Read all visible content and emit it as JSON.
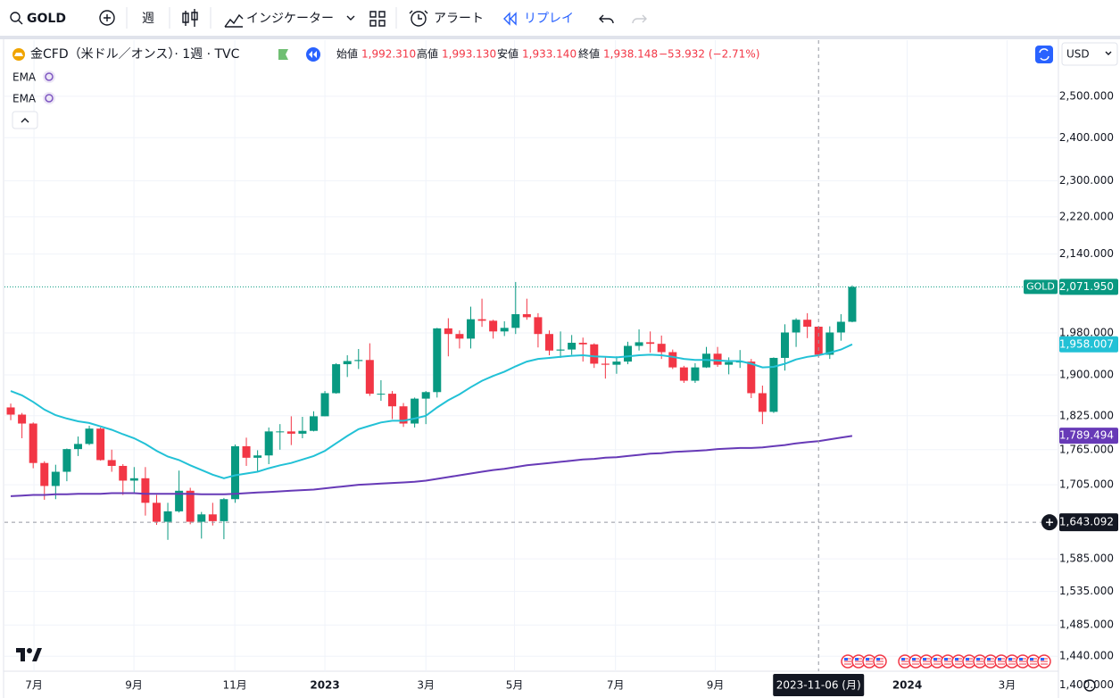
{
  "toolbar": {
    "symbol": "GOLD",
    "interval": "週",
    "indicators": "インジケーター",
    "alerts": "アラート",
    "replay": "リプレイ"
  },
  "chart_data": {
    "type": "candlestick",
    "title": "金CFD（米ドル／オンス）· 1週 · TVC",
    "ohlc": [
      {
        "name": "始値",
        "text": "1,992.310"
      },
      {
        "name": "高値",
        "text": "1,993.130"
      },
      {
        "name": "安値",
        "text": "1,933.140"
      },
      {
        "name": "終値",
        "text": "1,938.148"
      }
    ],
    "change": "−53.932 (−2.71%)",
    "currency": "USD",
    "up_color": "#089981",
    "down_color": "#f23645",
    "open": [
      1840,
      1827,
      1811,
      1742,
      1703,
      1727,
      1766,
      1775,
      1802,
      1747,
      1737,
      1712,
      1716,
      1675,
      1644,
      1661,
      1695,
      1644,
      1656,
      1645,
      1681,
      1771,
      1751,
      1755,
      1797,
      1797,
      1793,
      1798,
      1824,
      1866,
      1920,
      1926,
      1928,
      1865,
      1865,
      1842,
      1811,
      1856,
      1868,
      1989,
      1978,
      1969,
      2007,
      2004,
      1983,
      1990,
      2017,
      2011,
      1978,
      1946,
      1948,
      1961,
      1958,
      1921,
      1919,
      1925,
      1955,
      1962,
      1959,
      1943,
      1914,
      1889,
      1914,
      1940,
      1919,
      1924,
      1925,
      1866,
      1832,
      1932,
      1981,
      2006,
      1992.31,
      1938,
      1981,
      2002
    ],
    "high": [
      1847,
      1830,
      1813,
      1745,
      1739,
      1767,
      1788,
      1807,
      1804,
      1765,
      1740,
      1735,
      1735,
      1688,
      1675,
      1729,
      1700,
      1660,
      1675,
      1683,
      1774,
      1786,
      1764,
      1804,
      1810,
      1824,
      1823,
      1833,
      1870,
      1922,
      1937,
      1949,
      1960,
      1890,
      1870,
      1848,
      1858,
      1870,
      1990,
      2009,
      1985,
      2032,
      2048,
      2006,
      2003,
      2082,
      2048,
      2019,
      1985,
      1983,
      1976,
      1971,
      1960,
      1935,
      1935,
      1963,
      1987,
      1983,
      1975,
      1948,
      1917,
      1922,
      1953,
      1953,
      1933,
      1947,
      1930,
      1880,
      1933,
      1997,
      2009,
      2019,
      1993.13,
      1993,
      2017,
      2075
    ],
    "low": [
      1817,
      1785,
      1733,
      1680,
      1681,
      1711,
      1754,
      1773,
      1746,
      1727,
      1688,
      1691,
      1654,
      1639,
      1615,
      1659,
      1640,
      1617,
      1638,
      1616,
      1675,
      1737,
      1728,
      1740,
      1765,
      1773,
      1785,
      1797,
      1824,
      1865,
      1896,
      1911,
      1861,
      1852,
      1819,
      1805,
      1804,
      1810,
      1858,
      1935,
      1950,
      1950,
      1992,
      1969,
      1974,
      1978,
      2006,
      1952,
      1937,
      1932,
      1938,
      1925,
      1913,
      1893,
      1902,
      1920,
      1946,
      1942,
      1930,
      1911,
      1885,
      1885,
      1913,
      1915,
      1901,
      1913,
      1857,
      1810,
      1830,
      1908,
      1953,
      1970,
      1933.14,
      1930,
      1965,
      2001
    ],
    "close": [
      1827,
      1811,
      1742,
      1703,
      1727,
      1766,
      1775,
      1802,
      1747,
      1737,
      1712,
      1716,
      1675,
      1644,
      1661,
      1695,
      1644,
      1656,
      1645,
      1681,
      1771,
      1751,
      1755,
      1797,
      1797,
      1793,
      1798,
      1824,
      1866,
      1920,
      1926,
      1928,
      1865,
      1865,
      1842,
      1811,
      1856,
      1868,
      1989,
      1978,
      1969,
      2007,
      2004,
      1983,
      1990,
      2017,
      2011,
      1978,
      1946,
      1948,
      1961,
      1958,
      1921,
      1919,
      1925,
      1955,
      1962,
      1959,
      1943,
      1914,
      1889,
      1914,
      1940,
      1919,
      1924,
      1925,
      1866,
      1832,
      1932,
      1981,
      2006,
      1992.31,
      1938.148,
      1981,
      2002,
      2071.95
    ],
    "series": [
      {
        "name": "EMA",
        "color": "#22c1d6",
        "last": {
          "value": 1958.007,
          "label": "1,958.007"
        },
        "values": [
          1870,
          1862,
          1850,
          1836,
          1826,
          1820,
          1815,
          1812,
          1806,
          1800,
          1792,
          1785,
          1775,
          1763,
          1753,
          1747,
          1738,
          1730,
          1722,
          1716,
          1721,
          1724,
          1727,
          1733,
          1738,
          1742,
          1748,
          1754,
          1763,
          1776,
          1789,
          1801,
          1807,
          1813,
          1816,
          1816,
          1820,
          1825,
          1840,
          1853,
          1864,
          1877,
          1889,
          1898,
          1906,
          1916,
          1925,
          1930,
          1932,
          1934,
          1936,
          1937,
          1935,
          1934,
          1933,
          1935,
          1937,
          1938,
          1937,
          1934,
          1930,
          1928,
          1928,
          1927,
          1926,
          1926,
          1921,
          1914,
          1915,
          1921,
          1929,
          1934,
          1937,
          1942,
          1948,
          1958
        ]
      },
      {
        "name": "EMA",
        "color": "#673ab7",
        "last": {
          "value": 1789.494,
          "label": "1,789.494"
        },
        "values": [
          1686,
          1687,
          1688,
          1688,
          1689,
          1689,
          1690,
          1690,
          1690,
          1691,
          1691,
          1691,
          1690,
          1690,
          1690,
          1690,
          1690,
          1689,
          1689,
          1689,
          1690,
          1691,
          1692,
          1693,
          1694,
          1695,
          1696,
          1697,
          1699,
          1701,
          1703,
          1705,
          1706,
          1707,
          1708,
          1709,
          1710,
          1712,
          1715,
          1718,
          1721,
          1724,
          1727,
          1730,
          1732,
          1735,
          1738,
          1740,
          1742,
          1744,
          1746,
          1748,
          1749,
          1751,
          1752,
          1754,
          1756,
          1758,
          1759,
          1761,
          1762,
          1763,
          1764,
          1766,
          1767,
          1768,
          1768,
          1769,
          1771,
          1773,
          1776,
          1778,
          1780,
          1783,
          1786,
          1789
        ]
      }
    ],
    "last_price": {
      "name": "GOLD",
      "value": 2071.95,
      "label": "2,071.950",
      "color": "#089981"
    },
    "crosshair": {
      "x": 72,
      "label": "2023-11-06 (月)",
      "price": {
        "value": 1643.092,
        "label": "1,643.092"
      }
    },
    "log": true,
    "grid": true,
    "ylim": [
      1382,
      2642
    ],
    "yticks": [
      {
        "value": 1400,
        "label": "1,400.000"
      },
      {
        "value": 1440,
        "label": "1,440.000"
      },
      {
        "value": 1485,
        "label": "1,485.000"
      },
      {
        "value": 1535,
        "label": "1,535.000"
      },
      {
        "value": 1585,
        "label": "1,585.000"
      },
      {
        "value": 1705,
        "label": "1,705.000"
      },
      {
        "value": 1765,
        "label": "1,765.000"
      },
      {
        "value": 1825,
        "label": "1,825.000"
      },
      {
        "value": 1900,
        "label": "1,900.000"
      },
      {
        "value": 1980,
        "label": "1,980.000"
      },
      {
        "value": 2140,
        "label": "2,140.000"
      },
      {
        "value": 2220,
        "label": "2,220.000"
      },
      {
        "value": 2300,
        "label": "2,300.000"
      },
      {
        "value": 2400,
        "label": "2,400.000"
      },
      {
        "value": 2500,
        "label": "2,500.000"
      }
    ],
    "xlim": [
      -0.56,
      93.3
    ],
    "xticks": [
      {
        "value": 2.07,
        "label": "7月"
      },
      {
        "value": 10.98,
        "label": "9月"
      },
      {
        "value": 19.97,
        "label": "11月"
      },
      {
        "value": 28,
        "label": "2023"
      },
      {
        "value": 37,
        "label": "3月"
      },
      {
        "value": 44.9,
        "label": "5月"
      },
      {
        "value": 53.9,
        "label": "7月"
      },
      {
        "value": 62.8,
        "label": "9月"
      },
      {
        "value": 79.9,
        "label": "2024"
      },
      {
        "value": 88.8,
        "label": "3月"
      }
    ]
  }
}
